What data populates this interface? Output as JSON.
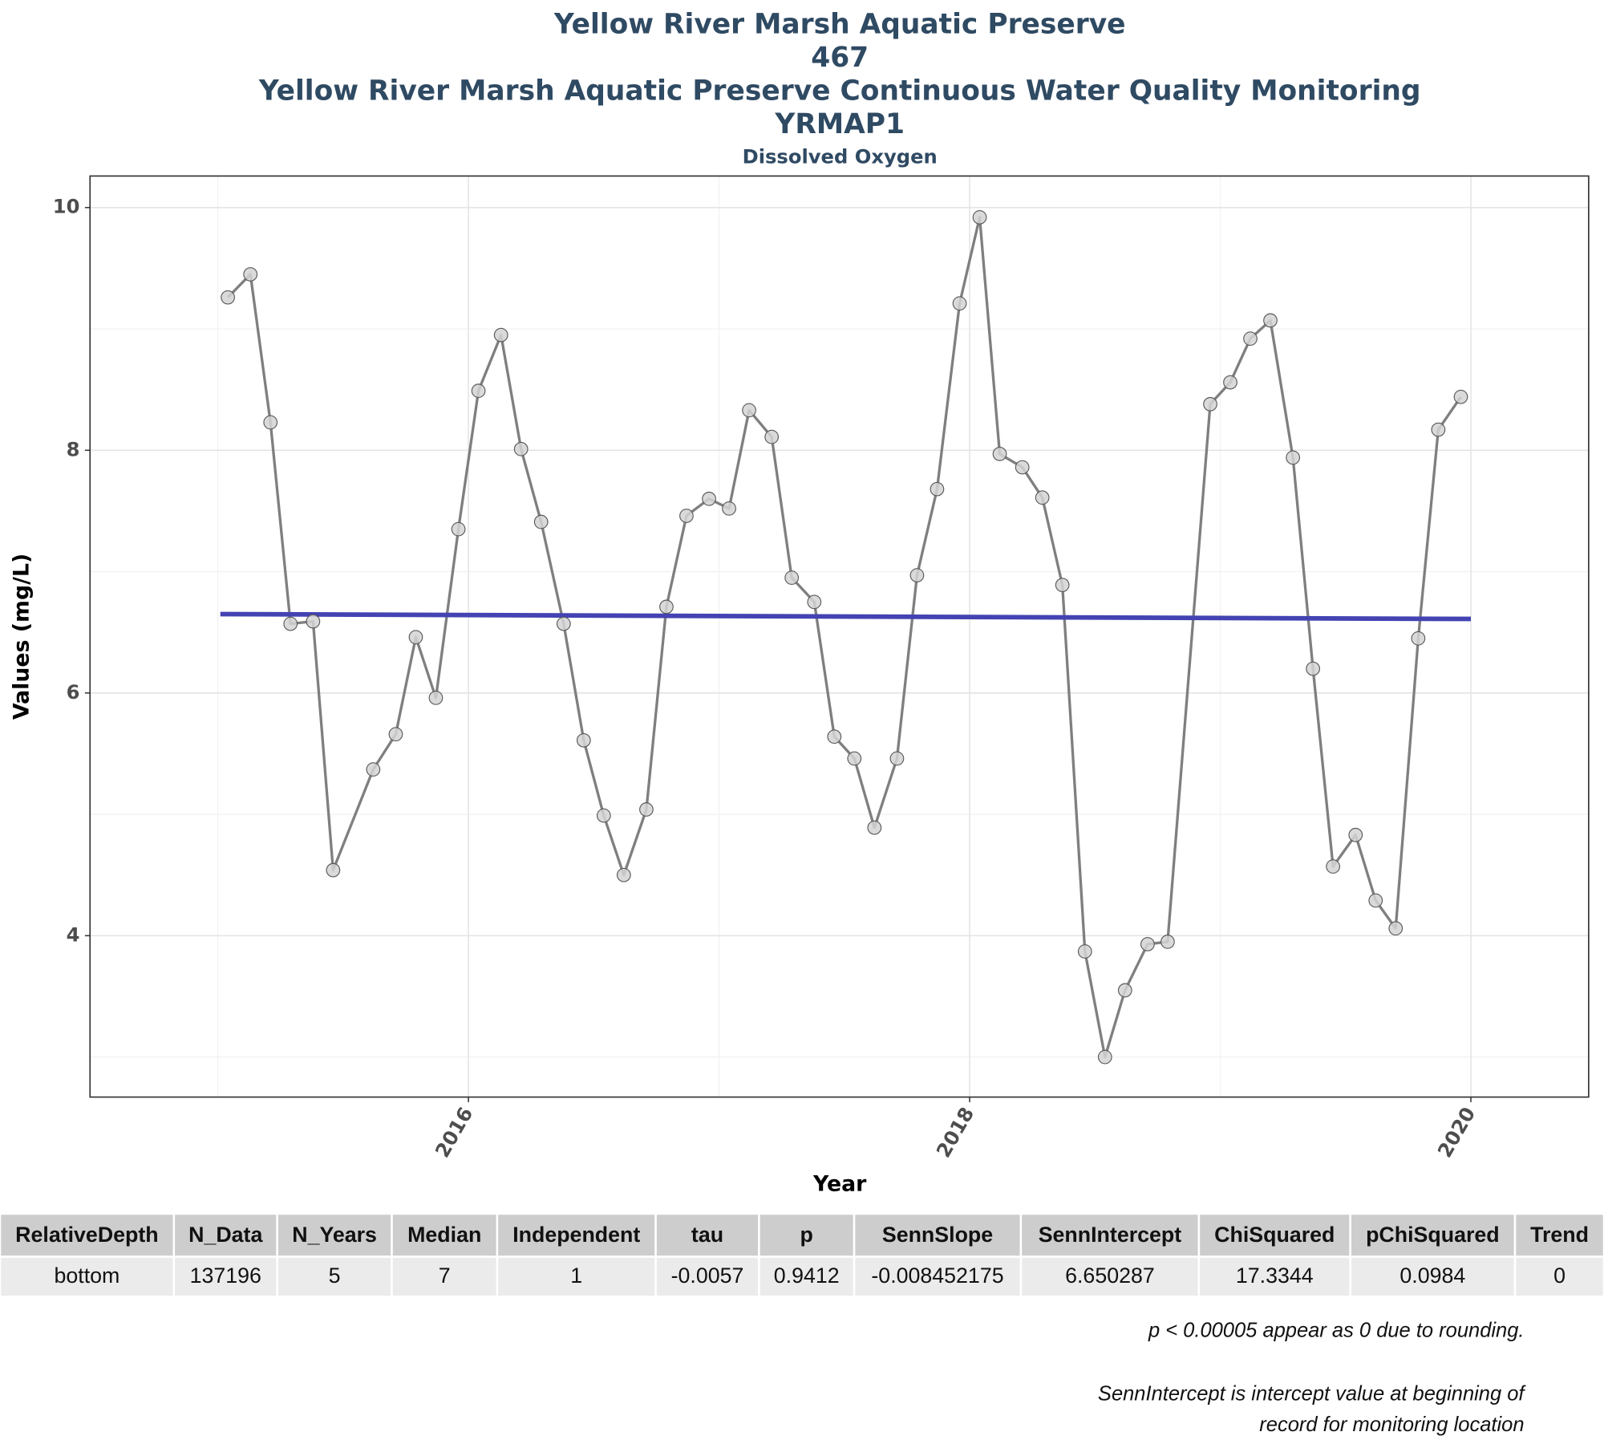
{
  "chart_data": {
    "type": "line",
    "title": [
      "Yellow River Marsh Aquatic Preserve",
      "467",
      "Yellow River Marsh Aquatic Preserve Continuous Water Quality Monitoring",
      "YRMAP1"
    ],
    "subtitle": "Dissolved Oxygen",
    "x_label": "Year",
    "y_label": "Values (mg/L)",
    "xlim": [
      2014.49,
      2020.47
    ],
    "xticks": [
      2016,
      2018,
      2020
    ],
    "x_minor_grid": [
      2015,
      2017,
      2019
    ],
    "ylim": [
      2.67,
      10.26
    ],
    "yticks": [
      4,
      6,
      8,
      10
    ],
    "y_minor_grid": [
      3,
      5,
      7,
      9
    ],
    "grid": true,
    "x": [
      2015.04,
      2015.13,
      2015.21,
      2015.29,
      2015.38,
      2015.46,
      2015.62,
      2015.71,
      2015.79,
      2015.87,
      2015.96,
      2016.04,
      2016.13,
      2016.21,
      2016.29,
      2016.38,
      2016.46,
      2016.54,
      2016.62,
      2016.71,
      2016.79,
      2016.87,
      2016.96,
      2017.04,
      2017.12,
      2017.21,
      2017.29,
      2017.38,
      2017.46,
      2017.54,
      2017.62,
      2017.71,
      2017.79,
      2017.87,
      2017.96,
      2018.04,
      2018.12,
      2018.21,
      2018.29,
      2018.37,
      2018.46,
      2018.54,
      2018.62,
      2018.71,
      2018.79,
      2018.96,
      2019.04,
      2019.12,
      2019.2,
      2019.29,
      2019.37,
      2019.45,
      2019.54,
      2019.62,
      2019.7,
      2019.79,
      2019.87,
      2019.96
    ],
    "series": [
      {
        "color": "#7f7f7f",
        "point_color": "#d3d3d3",
        "values": [
          9.26,
          9.45,
          8.23,
          6.57,
          6.59,
          4.54,
          5.37,
          5.66,
          6.46,
          5.96,
          7.35,
          8.49,
          8.95,
          8.01,
          7.41,
          6.57,
          5.61,
          4.99,
          4.5,
          5.04,
          6.71,
          7.46,
          7.6,
          7.52,
          8.33,
          8.11,
          6.95,
          6.75,
          5.64,
          5.46,
          4.89,
          5.46,
          6.97,
          7.68,
          9.21,
          9.92,
          7.97,
          7.86,
          7.61,
          6.89,
          3.87,
          3.0,
          3.55,
          3.93,
          3.95,
          8.38,
          8.56,
          8.92,
          9.07,
          7.94,
          6.2,
          4.57,
          4.83,
          4.29,
          4.06,
          6.45,
          8.17,
          8.44
        ]
      }
    ],
    "trend_line": {
      "x": [
        2015.01,
        2020.0
      ],
      "values": [
        6.65,
        6.61
      ],
      "color": "#4343b3"
    }
  },
  "table": {
    "headers": [
      "RelativeDepth",
      "N_Data",
      "N_Years",
      "Median",
      "Independent",
      "tau",
      "p",
      "SennSlope",
      "SennIntercept",
      "ChiSquared",
      "pChiSquared",
      "Trend"
    ],
    "rows": [
      [
        "bottom",
        137196,
        5,
        7,
        1,
        -0.0057,
        0.9412,
        -0.008452175,
        6.650287,
        17.3344,
        0.0984,
        0
      ]
    ]
  },
  "notes": [
    [
      "p < 0.00005 appear as 0 due to rounding."
    ],
    [
      "SennIntercept is intercept value at beginning of",
      "record for monitoring location"
    ]
  ]
}
